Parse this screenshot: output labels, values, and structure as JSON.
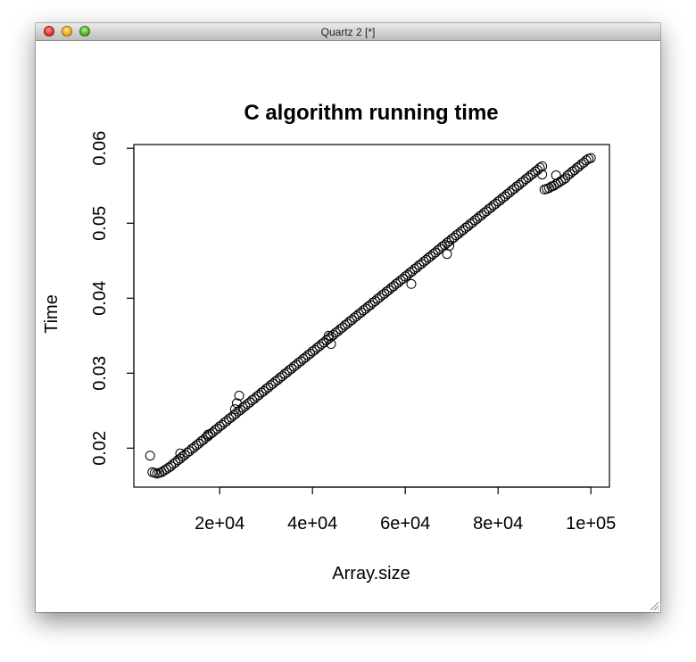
{
  "window": {
    "title": "Quartz 2 [*]"
  },
  "chart_data": {
    "type": "scatter",
    "title": "C algorithm running time",
    "xlabel": "Array.size",
    "ylabel": "Time",
    "xlim": [
      1500,
      104000
    ],
    "ylim": [
      0.0148,
      0.0605
    ],
    "xticks": [
      20000,
      40000,
      60000,
      80000,
      100000
    ],
    "xtick_labels": [
      "2e+04",
      "4e+04",
      "6e+04",
      "8e+04",
      "1e+05"
    ],
    "yticks": [
      0.02,
      0.03,
      0.04,
      0.05,
      0.06
    ],
    "ytick_labels": [
      "0.02",
      "0.03",
      "0.04",
      "0.05",
      "0.06"
    ],
    "grid": false,
    "marker": "open-circle",
    "series": [
      {
        "points": [
          [
            5000,
            0.019
          ],
          [
            5500,
            0.0168
          ],
          [
            6000,
            0.0167
          ],
          [
            6500,
            0.0166
          ],
          [
            7000,
            0.0167
          ],
          [
            7500,
            0.0168
          ],
          [
            8000,
            0.017
          ],
          [
            8500,
            0.0172
          ],
          [
            9000,
            0.0174
          ],
          [
            9500,
            0.0176
          ],
          [
            10000,
            0.0179
          ],
          [
            10500,
            0.0181
          ],
          [
            11000,
            0.0184
          ],
          [
            11500,
            0.0186
          ],
          [
            12000,
            0.0189
          ],
          [
            12500,
            0.0191
          ],
          [
            13000,
            0.0194
          ],
          [
            13500,
            0.0196
          ],
          [
            14000,
            0.0199
          ],
          [
            14500,
            0.0201
          ],
          [
            15000,
            0.0204
          ],
          [
            15500,
            0.0206
          ],
          [
            16000,
            0.0209
          ],
          [
            16500,
            0.0211
          ],
          [
            17000,
            0.0214
          ],
          [
            17500,
            0.0216
          ],
          [
            18000,
            0.0219
          ],
          [
            18500,
            0.0221
          ],
          [
            19000,
            0.0224
          ],
          [
            19500,
            0.0226
          ],
          [
            20000,
            0.0229
          ],
          [
            20500,
            0.0231
          ],
          [
            21000,
            0.0234
          ],
          [
            21500,
            0.0236
          ],
          [
            22000,
            0.0239
          ],
          [
            22500,
            0.0241
          ],
          [
            23000,
            0.0244
          ],
          [
            23500,
            0.0246
          ],
          [
            24000,
            0.0249
          ],
          [
            24500,
            0.0251
          ],
          [
            25000,
            0.0254
          ],
          [
            25500,
            0.0256
          ],
          [
            26000,
            0.0259
          ],
          [
            26500,
            0.0261
          ],
          [
            27000,
            0.0264
          ],
          [
            27500,
            0.0266
          ],
          [
            28000,
            0.0269
          ],
          [
            28500,
            0.0271
          ],
          [
            29000,
            0.0274
          ],
          [
            29500,
            0.0276
          ],
          [
            30000,
            0.0279
          ],
          [
            30500,
            0.0281
          ],
          [
            31000,
            0.0284
          ],
          [
            31500,
            0.0286
          ],
          [
            32000,
            0.0289
          ],
          [
            32500,
            0.0291
          ],
          [
            33000,
            0.0294
          ],
          [
            33500,
            0.0296
          ],
          [
            34000,
            0.0299
          ],
          [
            34500,
            0.0301
          ],
          [
            35000,
            0.0304
          ],
          [
            35500,
            0.0306
          ],
          [
            36000,
            0.0309
          ],
          [
            36500,
            0.0311
          ],
          [
            37000,
            0.0314
          ],
          [
            37500,
            0.0316
          ],
          [
            38000,
            0.0319
          ],
          [
            38500,
            0.0321
          ],
          [
            39000,
            0.0324
          ],
          [
            39500,
            0.0326
          ],
          [
            40000,
            0.0329
          ],
          [
            40500,
            0.0331
          ],
          [
            41000,
            0.0334
          ],
          [
            41500,
            0.0336
          ],
          [
            42000,
            0.0339
          ],
          [
            42500,
            0.0341
          ],
          [
            43000,
            0.0344
          ],
          [
            43500,
            0.0346
          ],
          [
            44000,
            0.0349
          ],
          [
            44500,
            0.0351
          ],
          [
            45000,
            0.0354
          ],
          [
            45500,
            0.0356
          ],
          [
            46000,
            0.0359
          ],
          [
            46500,
            0.0361
          ],
          [
            47000,
            0.0364
          ],
          [
            47500,
            0.0366
          ],
          [
            48000,
            0.0369
          ],
          [
            48500,
            0.0371
          ],
          [
            49000,
            0.0374
          ],
          [
            49500,
            0.0376
          ],
          [
            50000,
            0.0379
          ],
          [
            50500,
            0.0381
          ],
          [
            51000,
            0.0384
          ],
          [
            51500,
            0.0386
          ],
          [
            52000,
            0.0389
          ],
          [
            52500,
            0.0391
          ],
          [
            53000,
            0.0394
          ],
          [
            53500,
            0.0396
          ],
          [
            54000,
            0.0399
          ],
          [
            54500,
            0.0401
          ],
          [
            55000,
            0.0404
          ],
          [
            55500,
            0.0406
          ],
          [
            56000,
            0.0409
          ],
          [
            56500,
            0.0411
          ],
          [
            57000,
            0.0414
          ],
          [
            57500,
            0.0416
          ],
          [
            58000,
            0.0419
          ],
          [
            58500,
            0.0421
          ],
          [
            59000,
            0.0424
          ],
          [
            59500,
            0.0426
          ],
          [
            60000,
            0.0429
          ],
          [
            60500,
            0.0431
          ],
          [
            61000,
            0.0434
          ],
          [
            61500,
            0.0436
          ],
          [
            62000,
            0.0439
          ],
          [
            62500,
            0.0441
          ],
          [
            63000,
            0.0444
          ],
          [
            63500,
            0.0446
          ],
          [
            64000,
            0.0449
          ],
          [
            64500,
            0.0451
          ],
          [
            65000,
            0.0454
          ],
          [
            65500,
            0.0456
          ],
          [
            66000,
            0.0459
          ],
          [
            66500,
            0.0461
          ],
          [
            67000,
            0.0464
          ],
          [
            67500,
            0.0466
          ],
          [
            68000,
            0.0469
          ],
          [
            68500,
            0.0471
          ],
          [
            69000,
            0.0474
          ],
          [
            69500,
            0.0476
          ],
          [
            70000,
            0.0479
          ],
          [
            70500,
            0.0481
          ],
          [
            71000,
            0.0484
          ],
          [
            71500,
            0.0486
          ],
          [
            72000,
            0.0489
          ],
          [
            72500,
            0.0491
          ],
          [
            73000,
            0.0494
          ],
          [
            73500,
            0.0496
          ],
          [
            74000,
            0.0499
          ],
          [
            74500,
            0.0501
          ],
          [
            75000,
            0.0504
          ],
          [
            75500,
            0.0506
          ],
          [
            76000,
            0.0509
          ],
          [
            76500,
            0.0511
          ],
          [
            77000,
            0.0514
          ],
          [
            77500,
            0.0516
          ],
          [
            78000,
            0.0519
          ],
          [
            78500,
            0.0521
          ],
          [
            79000,
            0.0524
          ],
          [
            79500,
            0.0526
          ],
          [
            80000,
            0.0529
          ],
          [
            80500,
            0.0531
          ],
          [
            81000,
            0.0534
          ],
          [
            81500,
            0.0536
          ],
          [
            82000,
            0.0539
          ],
          [
            82500,
            0.0541
          ],
          [
            83000,
            0.0544
          ],
          [
            83500,
            0.0546
          ],
          [
            84000,
            0.0549
          ],
          [
            84500,
            0.0551
          ],
          [
            85000,
            0.0554
          ],
          [
            85500,
            0.0556
          ],
          [
            86000,
            0.0559
          ],
          [
            86500,
            0.0561
          ],
          [
            87000,
            0.0564
          ],
          [
            87500,
            0.0566
          ],
          [
            88000,
            0.0569
          ],
          [
            88500,
            0.0571
          ],
          [
            89000,
            0.0574
          ],
          [
            89500,
            0.0576
          ],
          [
            90000,
            0.0545
          ],
          [
            90500,
            0.0546
          ],
          [
            91000,
            0.0547
          ],
          [
            91500,
            0.0549
          ],
          [
            92000,
            0.055
          ],
          [
            92500,
            0.0552
          ],
          [
            93000,
            0.0554
          ],
          [
            93500,
            0.0556
          ],
          [
            94000,
            0.0558
          ],
          [
            94500,
            0.056
          ],
          [
            95000,
            0.0564
          ],
          [
            95500,
            0.0566
          ],
          [
            96000,
            0.0569
          ],
          [
            96500,
            0.0571
          ],
          [
            97000,
            0.0574
          ],
          [
            97500,
            0.0576
          ],
          [
            98000,
            0.0579
          ],
          [
            98500,
            0.0581
          ],
          [
            99000,
            0.0584
          ],
          [
            99500,
            0.0586
          ],
          [
            100000,
            0.0587
          ],
          [
            11500,
            0.0193
          ],
          [
            17500,
            0.0218
          ],
          [
            23300,
            0.0252
          ],
          [
            23700,
            0.026
          ],
          [
            24200,
            0.027
          ],
          [
            43500,
            0.035
          ],
          [
            44000,
            0.0339
          ],
          [
            61300,
            0.0419
          ],
          [
            69000,
            0.0459
          ],
          [
            69500,
            0.047
          ],
          [
            89500,
            0.0565
          ],
          [
            92500,
            0.0564
          ]
        ]
      }
    ]
  }
}
